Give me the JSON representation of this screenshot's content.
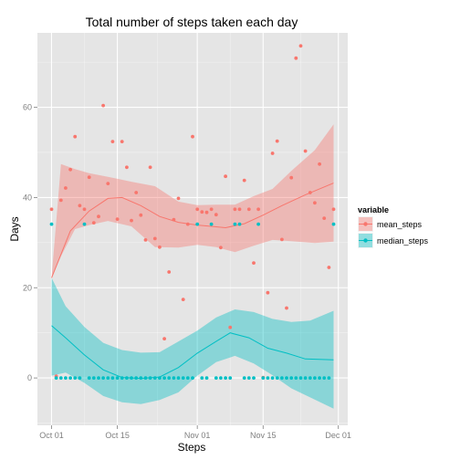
{
  "chart_data": {
    "type": "scatter",
    "title": "Total number of steps taken each day",
    "xlabel": "Steps",
    "ylabel": "Days",
    "x_ticks": [
      "Oct 01",
      "Oct 15",
      "Nov 01",
      "Nov 15",
      "Dec 01"
    ],
    "y_ticks": [
      0,
      20,
      40,
      60
    ],
    "ylim": [
      -10.5,
      76.5
    ],
    "xlim": [
      "2012-09-28",
      "2012-12-03"
    ],
    "grid": true,
    "legend": {
      "title": "variable",
      "position": "right",
      "entries": [
        "mean_steps",
        "median_steps"
      ]
    },
    "colors": {
      "mean_steps": "#F8766D",
      "median_steps": "#00BFC4",
      "panel_bg": "#E5E5E5",
      "grid": "#FFFFFF"
    },
    "series": [
      {
        "name": "mean_steps",
        "points": [
          [
            "2012-10-01",
            37.4
          ],
          [
            "2012-10-02",
            0.4
          ],
          [
            "2012-10-03",
            39.4
          ],
          [
            "2012-10-04",
            42.1
          ],
          [
            "2012-10-05",
            46.2
          ],
          [
            "2012-10-06",
            53.5
          ],
          [
            "2012-10-07",
            38.2
          ],
          [
            "2012-10-08",
            37.4
          ],
          [
            "2012-10-09",
            44.5
          ],
          [
            "2012-10-10",
            34.4
          ],
          [
            "2012-10-11",
            35.8
          ],
          [
            "2012-10-12",
            60.4
          ],
          [
            "2012-10-13",
            43.1
          ],
          [
            "2012-10-14",
            52.4
          ],
          [
            "2012-10-15",
            35.2
          ],
          [
            "2012-10-16",
            52.4
          ],
          [
            "2012-10-17",
            46.7
          ],
          [
            "2012-10-18",
            34.9
          ],
          [
            "2012-10-19",
            41.1
          ],
          [
            "2012-10-20",
            36.1
          ],
          [
            "2012-10-21",
            30.6
          ],
          [
            "2012-10-22",
            46.7
          ],
          [
            "2012-10-23",
            30.9
          ],
          [
            "2012-10-24",
            29.0
          ],
          [
            "2012-10-25",
            8.7
          ],
          [
            "2012-10-26",
            23.5
          ],
          [
            "2012-10-27",
            35.1
          ],
          [
            "2012-10-28",
            39.8
          ],
          [
            "2012-10-29",
            17.4
          ],
          [
            "2012-10-30",
            34.1
          ],
          [
            "2012-10-31",
            53.5
          ],
          [
            "2012-11-01",
            37.4
          ],
          [
            "2012-11-02",
            36.8
          ],
          [
            "2012-11-03",
            36.7
          ],
          [
            "2012-11-04",
            37.4
          ],
          [
            "2012-11-05",
            36.2
          ],
          [
            "2012-11-06",
            28.9
          ],
          [
            "2012-11-07",
            44.7
          ],
          [
            "2012-11-08",
            11.2
          ],
          [
            "2012-11-09",
            37.4
          ],
          [
            "2012-11-10",
            37.4
          ],
          [
            "2012-11-11",
            43.8
          ],
          [
            "2012-11-12",
            37.4
          ],
          [
            "2012-11-13",
            25.5
          ],
          [
            "2012-11-14",
            37.4
          ],
          [
            "2012-11-15",
            0.1
          ],
          [
            "2012-11-16",
            18.9
          ],
          [
            "2012-11-17",
            49.8
          ],
          [
            "2012-11-18",
            52.5
          ],
          [
            "2012-11-19",
            30.7
          ],
          [
            "2012-11-20",
            15.5
          ],
          [
            "2012-11-21",
            44.4
          ],
          [
            "2012-11-22",
            70.9
          ],
          [
            "2012-11-23",
            73.6
          ],
          [
            "2012-11-24",
            50.3
          ],
          [
            "2012-11-25",
            41.1
          ],
          [
            "2012-11-26",
            38.8
          ],
          [
            "2012-11-27",
            47.4
          ],
          [
            "2012-11-28",
            35.4
          ],
          [
            "2012-11-29",
            24.5
          ],
          [
            "2012-11-30",
            37.4
          ]
        ]
      },
      {
        "name": "median_steps",
        "points": [
          [
            "2012-10-01",
            34.1
          ],
          [
            "2012-10-02",
            0
          ],
          [
            "2012-10-03",
            0
          ],
          [
            "2012-10-04",
            0
          ],
          [
            "2012-10-05",
            0
          ],
          [
            "2012-10-06",
            0
          ],
          [
            "2012-10-07",
            0
          ],
          [
            "2012-10-08",
            34.1
          ],
          [
            "2012-10-09",
            0
          ],
          [
            "2012-10-10",
            0
          ],
          [
            "2012-10-11",
            0
          ],
          [
            "2012-10-12",
            0
          ],
          [
            "2012-10-13",
            0
          ],
          [
            "2012-10-14",
            0
          ],
          [
            "2012-10-15",
            0
          ],
          [
            "2012-10-16",
            0
          ],
          [
            "2012-10-17",
            0
          ],
          [
            "2012-10-18",
            0
          ],
          [
            "2012-10-19",
            0
          ],
          [
            "2012-10-20",
            0
          ],
          [
            "2012-10-21",
            0
          ],
          [
            "2012-10-22",
            0
          ],
          [
            "2012-10-23",
            0
          ],
          [
            "2012-10-24",
            0
          ],
          [
            "2012-10-25",
            0
          ],
          [
            "2012-10-26",
            0
          ],
          [
            "2012-10-27",
            0
          ],
          [
            "2012-10-28",
            0
          ],
          [
            "2012-10-29",
            0
          ],
          [
            "2012-10-30",
            0
          ],
          [
            "2012-10-31",
            0
          ],
          [
            "2012-11-01",
            34.1
          ],
          [
            "2012-11-02",
            0
          ],
          [
            "2012-11-03",
            0
          ],
          [
            "2012-11-04",
            34.1
          ],
          [
            "2012-11-05",
            0
          ],
          [
            "2012-11-06",
            0
          ],
          [
            "2012-11-07",
            0
          ],
          [
            "2012-11-08",
            0
          ],
          [
            "2012-11-09",
            34.1
          ],
          [
            "2012-11-10",
            34.1
          ],
          [
            "2012-11-11",
            0
          ],
          [
            "2012-11-12",
            0
          ],
          [
            "2012-11-13",
            0
          ],
          [
            "2012-11-14",
            34.1
          ],
          [
            "2012-11-15",
            0
          ],
          [
            "2012-11-16",
            0
          ],
          [
            "2012-11-17",
            0
          ],
          [
            "2012-11-18",
            0
          ],
          [
            "2012-11-19",
            0
          ],
          [
            "2012-11-20",
            0
          ],
          [
            "2012-11-21",
            0
          ],
          [
            "2012-11-22",
            0
          ],
          [
            "2012-11-23",
            0
          ],
          [
            "2012-11-24",
            0
          ],
          [
            "2012-11-25",
            0
          ],
          [
            "2012-11-26",
            0
          ],
          [
            "2012-11-27",
            0
          ],
          [
            "2012-11-28",
            0
          ],
          [
            "2012-11-29",
            0
          ],
          [
            "2012-11-30",
            34.1
          ]
        ]
      }
    ],
    "smooth": [
      {
        "name": "mean_steps",
        "fit": [
          [
            "2012-10-01",
            22.2
          ],
          [
            "2012-10-05",
            32.6
          ],
          [
            "2012-10-09",
            37.0
          ],
          [
            "2012-10-13",
            39.8
          ],
          [
            "2012-10-16",
            40.0
          ],
          [
            "2012-10-20",
            38.2
          ],
          [
            "2012-10-24",
            35.8
          ],
          [
            "2012-10-28",
            34.5
          ],
          [
            "2012-11-01",
            33.9
          ],
          [
            "2012-11-04",
            33.6
          ],
          [
            "2012-11-07",
            33.3
          ],
          [
            "2012-11-11",
            34.2
          ],
          [
            "2012-11-15",
            36.1
          ],
          [
            "2012-11-19",
            38.2
          ],
          [
            "2012-11-24",
            40.6
          ],
          [
            "2012-11-30",
            43.2
          ]
        ],
        "upper": [
          [
            "2012-10-01",
            22.2
          ],
          [
            "2012-10-03",
            47.4
          ],
          [
            "2012-10-06",
            46.3
          ],
          [
            "2012-10-09",
            45.4
          ],
          [
            "2012-10-13",
            44.6
          ],
          [
            "2012-10-18",
            43.5
          ],
          [
            "2012-10-23",
            42.5
          ],
          [
            "2012-10-28",
            39.1
          ],
          [
            "2012-11-01",
            38.3
          ],
          [
            "2012-11-05",
            38.4
          ],
          [
            "2012-11-09",
            38.4
          ],
          [
            "2012-11-13",
            40.3
          ],
          [
            "2012-11-17",
            41.9
          ],
          [
            "2012-11-21",
            45.9
          ],
          [
            "2012-11-26",
            50.5
          ],
          [
            "2012-11-30",
            56.2
          ]
        ],
        "lower": [
          [
            "2012-10-01",
            22.2
          ],
          [
            "2012-10-03",
            27.0
          ],
          [
            "2012-10-06",
            33.0
          ],
          [
            "2012-10-09",
            33.9
          ],
          [
            "2012-10-13",
            34.8
          ],
          [
            "2012-10-18",
            33.6
          ],
          [
            "2012-10-23",
            29.0
          ],
          [
            "2012-10-28",
            28.9
          ],
          [
            "2012-11-01",
            29.5
          ],
          [
            "2012-11-05",
            29.0
          ],
          [
            "2012-11-09",
            27.9
          ],
          [
            "2012-11-13",
            29.3
          ],
          [
            "2012-11-17",
            30.6
          ],
          [
            "2012-11-21",
            30.3
          ],
          [
            "2012-11-26",
            29.9
          ],
          [
            "2012-11-30",
            30.2
          ]
        ]
      },
      {
        "name": "median_steps",
        "fit": [
          [
            "2012-10-01",
            11.6
          ],
          [
            "2012-10-04",
            8.9
          ],
          [
            "2012-10-08",
            5.1
          ],
          [
            "2012-10-12",
            1.8
          ],
          [
            "2012-10-16",
            0.1
          ],
          [
            "2012-10-20",
            -0.1
          ],
          [
            "2012-10-24",
            0.2
          ],
          [
            "2012-10-28",
            2.3
          ],
          [
            "2012-11-01",
            5.5
          ],
          [
            "2012-11-05",
            8.1
          ],
          [
            "2012-11-08",
            10.0
          ],
          [
            "2012-11-12",
            8.9
          ],
          [
            "2012-11-16",
            6.6
          ],
          [
            "2012-11-20",
            5.5
          ],
          [
            "2012-11-24",
            4.2
          ],
          [
            "2012-11-30",
            4.0
          ]
        ],
        "upper": [
          [
            "2012-10-01",
            22.2
          ],
          [
            "2012-10-04",
            15.9
          ],
          [
            "2012-10-08",
            11.3
          ],
          [
            "2012-10-12",
            7.8
          ],
          [
            "2012-10-16",
            6.2
          ],
          [
            "2012-10-20",
            5.6
          ],
          [
            "2012-10-24",
            5.7
          ],
          [
            "2012-10-28",
            8.1
          ],
          [
            "2012-11-01",
            10.5
          ],
          [
            "2012-11-05",
            13.4
          ],
          [
            "2012-11-09",
            15.2
          ],
          [
            "2012-11-13",
            14.6
          ],
          [
            "2012-11-17",
            13.1
          ],
          [
            "2012-11-21",
            12.4
          ],
          [
            "2012-11-25",
            12.7
          ],
          [
            "2012-11-30",
            14.9
          ]
        ],
        "lower": [
          [
            "2012-10-01",
            0.5
          ],
          [
            "2012-10-04",
            1.2
          ],
          [
            "2012-10-08",
            -1.1
          ],
          [
            "2012-10-12",
            -4.0
          ],
          [
            "2012-10-16",
            -5.4
          ],
          [
            "2012-10-20",
            -5.8
          ],
          [
            "2012-10-24",
            -4.9
          ],
          [
            "2012-10-28",
            -3.2
          ],
          [
            "2012-11-01",
            0.5
          ],
          [
            "2012-11-05",
            3.5
          ],
          [
            "2012-11-09",
            4.9
          ],
          [
            "2012-11-13",
            3.2
          ],
          [
            "2012-11-17",
            0.6
          ],
          [
            "2012-11-21",
            -2.3
          ],
          [
            "2012-11-25",
            -4.3
          ],
          [
            "2012-11-30",
            -6.8
          ]
        ]
      }
    ]
  }
}
